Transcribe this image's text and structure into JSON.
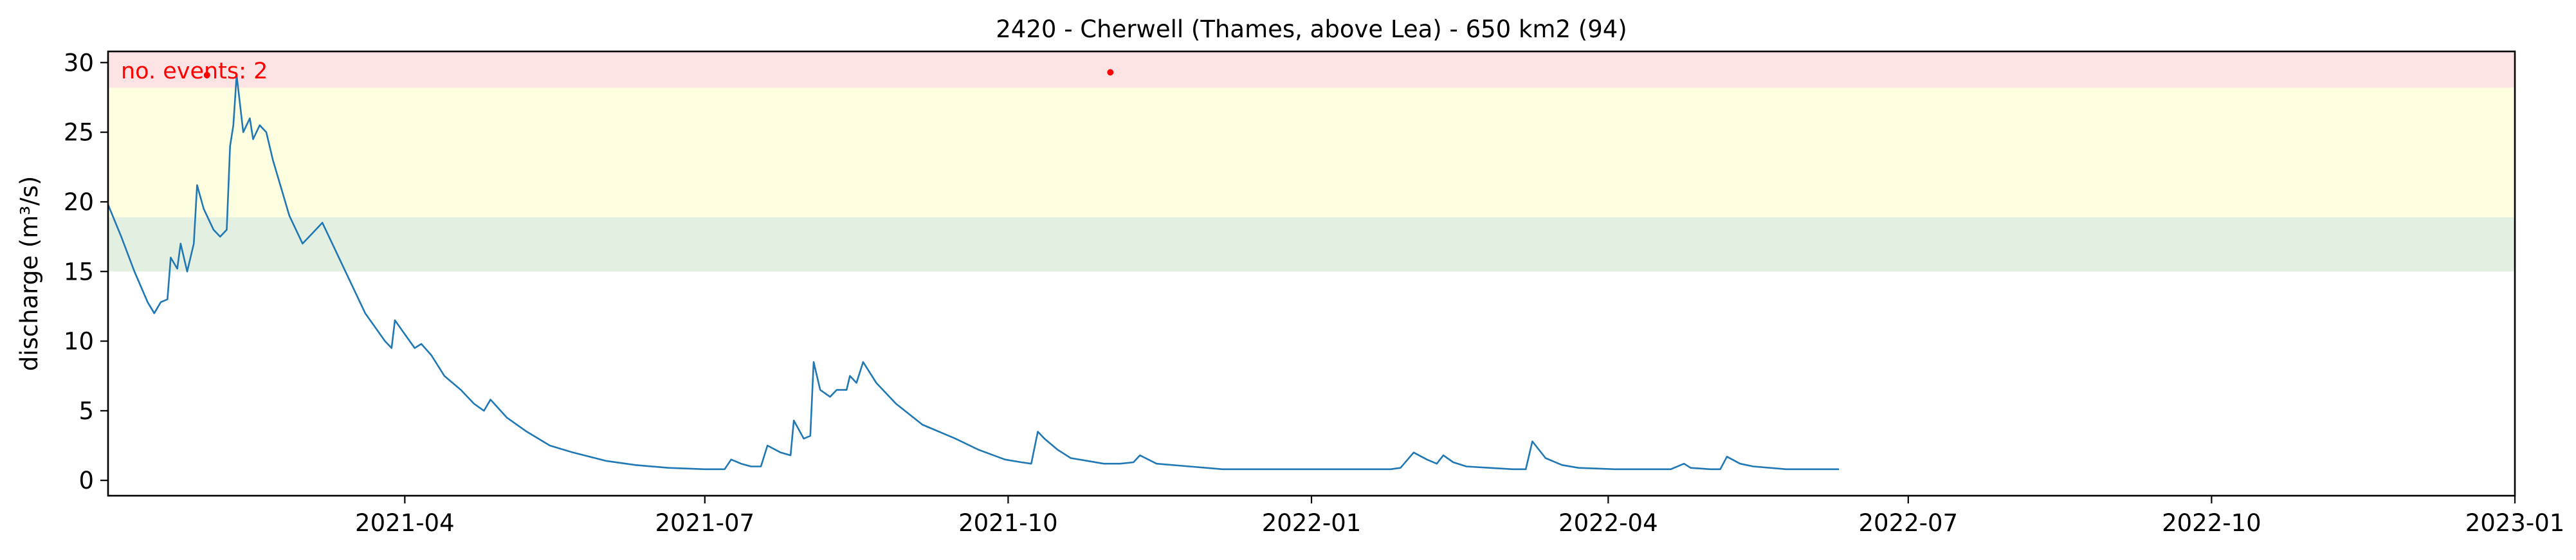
{
  "chart_data": {
    "type": "line",
    "title": "2420 - Cherwell (Thames, above Lea) - 650 km2 (94)",
    "xlabel": "",
    "ylabel": "discharge (m³/s)",
    "xlim": [
      "2021-01-01",
      "2023-01-01"
    ],
    "ylim": [
      -1.1,
      30.8
    ],
    "grid": false,
    "x_ticks": [
      "2021-04",
      "2021-07",
      "2021-10",
      "2022-01",
      "2022-04",
      "2022-07",
      "2022-10",
      "2023-01"
    ],
    "y_ticks": [
      0,
      5,
      10,
      15,
      20,
      25,
      30
    ],
    "threshold_bands": [
      {
        "from": 15.0,
        "to": 18.9,
        "color": "#e2efe1"
      },
      {
        "from": 18.9,
        "to": 28.2,
        "color": "#fdfde0"
      },
      {
        "from": 28.2,
        "to": 30.8,
        "color": "#fde3e4"
      }
    ],
    "annotation": {
      "text": "no. events: 2",
      "color": "#ff0000"
    },
    "events": [
      {
        "x": "2021-01-31",
        "y": 29.1
      },
      {
        "x": "2021-11-01",
        "y": 29.3
      }
    ],
    "series": [
      {
        "color": "#1f77b4",
        "points": [
          [
            "2021-01-01",
            19.8
          ],
          [
            "2021-01-05",
            17.5
          ],
          [
            "2021-01-09",
            15.0
          ],
          [
            "2021-01-13",
            12.8
          ],
          [
            "2021-01-15",
            12.0
          ],
          [
            "2021-01-17",
            12.8
          ],
          [
            "2021-01-19",
            13.0
          ],
          [
            "2021-01-20",
            16.0
          ],
          [
            "2021-01-22",
            15.2
          ],
          [
            "2021-01-23",
            17.0
          ],
          [
            "2021-01-25",
            15.0
          ],
          [
            "2021-01-27",
            17.0
          ],
          [
            "2021-01-28",
            21.2
          ],
          [
            "2021-01-30",
            19.5
          ],
          [
            "2021-02-02",
            18.0
          ],
          [
            "2021-02-04",
            17.5
          ],
          [
            "2021-02-06",
            18.0
          ],
          [
            "2021-02-07",
            24.0
          ],
          [
            "2021-02-08",
            25.5
          ],
          [
            "2021-02-09",
            29.1
          ],
          [
            "2021-02-11",
            25.0
          ],
          [
            "2021-02-13",
            26.0
          ],
          [
            "2021-02-14",
            24.5
          ],
          [
            "2021-02-16",
            25.5
          ],
          [
            "2021-02-18",
            25.0
          ],
          [
            "2021-02-20",
            23.0
          ],
          [
            "2021-02-25",
            19.0
          ],
          [
            "2021-03-01",
            17.0
          ],
          [
            "2021-03-03",
            17.5
          ],
          [
            "2021-03-07",
            18.5
          ],
          [
            "2021-03-10",
            17.0
          ],
          [
            "2021-03-14",
            15.0
          ],
          [
            "2021-03-20",
            12.0
          ],
          [
            "2021-03-26",
            10.0
          ],
          [
            "2021-03-28",
            9.5
          ],
          [
            "2021-03-29",
            11.5
          ],
          [
            "2021-04-01",
            10.5
          ],
          [
            "2021-04-04",
            9.5
          ],
          [
            "2021-04-06",
            9.8
          ],
          [
            "2021-04-09",
            9.0
          ],
          [
            "2021-04-13",
            7.5
          ],
          [
            "2021-04-18",
            6.5
          ],
          [
            "2021-04-22",
            5.5
          ],
          [
            "2021-04-25",
            5.0
          ],
          [
            "2021-04-27",
            5.8
          ],
          [
            "2021-05-02",
            4.5
          ],
          [
            "2021-05-08",
            3.5
          ],
          [
            "2021-05-15",
            2.5
          ],
          [
            "2021-05-22",
            2.0
          ],
          [
            "2021-06-01",
            1.4
          ],
          [
            "2021-06-10",
            1.1
          ],
          [
            "2021-06-20",
            0.9
          ],
          [
            "2021-07-01",
            0.8
          ],
          [
            "2021-07-07",
            0.8
          ],
          [
            "2021-07-09",
            1.5
          ],
          [
            "2021-07-12",
            1.2
          ],
          [
            "2021-07-15",
            1.0
          ],
          [
            "2021-07-18",
            1.0
          ],
          [
            "2021-07-20",
            2.5
          ],
          [
            "2021-07-24",
            2.0
          ],
          [
            "2021-07-27",
            1.8
          ],
          [
            "2021-07-28",
            4.3
          ],
          [
            "2021-07-31",
            3.0
          ],
          [
            "2021-08-02",
            3.2
          ],
          [
            "2021-08-03",
            8.5
          ],
          [
            "2021-08-05",
            6.5
          ],
          [
            "2021-08-08",
            6.0
          ],
          [
            "2021-08-10",
            6.5
          ],
          [
            "2021-08-13",
            6.5
          ],
          [
            "2021-08-14",
            7.5
          ],
          [
            "2021-08-16",
            7.0
          ],
          [
            "2021-08-18",
            8.5
          ],
          [
            "2021-08-22",
            7.0
          ],
          [
            "2021-08-28",
            5.5
          ],
          [
            "2021-09-05",
            4.0
          ],
          [
            "2021-09-15",
            3.0
          ],
          [
            "2021-09-22",
            2.2
          ],
          [
            "2021-09-30",
            1.5
          ],
          [
            "2021-10-05",
            1.3
          ],
          [
            "2021-10-08",
            1.2
          ],
          [
            "2021-10-10",
            3.5
          ],
          [
            "2021-10-12",
            3.0
          ],
          [
            "2021-10-16",
            2.2
          ],
          [
            "2021-10-20",
            1.6
          ],
          [
            "2021-10-25",
            1.4
          ],
          [
            "2021-10-30",
            1.2
          ],
          [
            "2021-11-04",
            1.2
          ],
          [
            "2021-11-08",
            1.3
          ],
          [
            "2021-11-10",
            1.8
          ],
          [
            "2021-11-15",
            1.2
          ],
          [
            "2021-11-25",
            1.0
          ],
          [
            "2021-12-05",
            0.8
          ],
          [
            "2021-12-15",
            0.8
          ],
          [
            "2021-12-25",
            0.8
          ],
          [
            "2022-01-05",
            0.8
          ],
          [
            "2022-01-15",
            0.8
          ],
          [
            "2022-01-25",
            0.8
          ],
          [
            "2022-01-28",
            0.9
          ],
          [
            "2022-02-01",
            2.0
          ],
          [
            "2022-02-05",
            1.5
          ],
          [
            "2022-02-08",
            1.2
          ],
          [
            "2022-02-10",
            1.8
          ],
          [
            "2022-02-13",
            1.3
          ],
          [
            "2022-02-17",
            1.0
          ],
          [
            "2022-02-24",
            0.9
          ],
          [
            "2022-03-03",
            0.8
          ],
          [
            "2022-03-07",
            0.8
          ],
          [
            "2022-03-09",
            2.8
          ],
          [
            "2022-03-13",
            1.6
          ],
          [
            "2022-03-18",
            1.1
          ],
          [
            "2022-03-23",
            0.9
          ],
          [
            "2022-04-03",
            0.8
          ],
          [
            "2022-04-13",
            0.8
          ],
          [
            "2022-04-20",
            0.8
          ],
          [
            "2022-04-24",
            1.2
          ],
          [
            "2022-04-26",
            0.9
          ],
          [
            "2022-05-02",
            0.8
          ],
          [
            "2022-05-05",
            0.8
          ],
          [
            "2022-05-07",
            1.7
          ],
          [
            "2022-05-11",
            1.2
          ],
          [
            "2022-05-15",
            1.0
          ],
          [
            "2022-05-25",
            0.8
          ],
          [
            "2022-06-05",
            0.8
          ],
          [
            "2022-06-10",
            0.8
          ]
        ]
      }
    ]
  }
}
